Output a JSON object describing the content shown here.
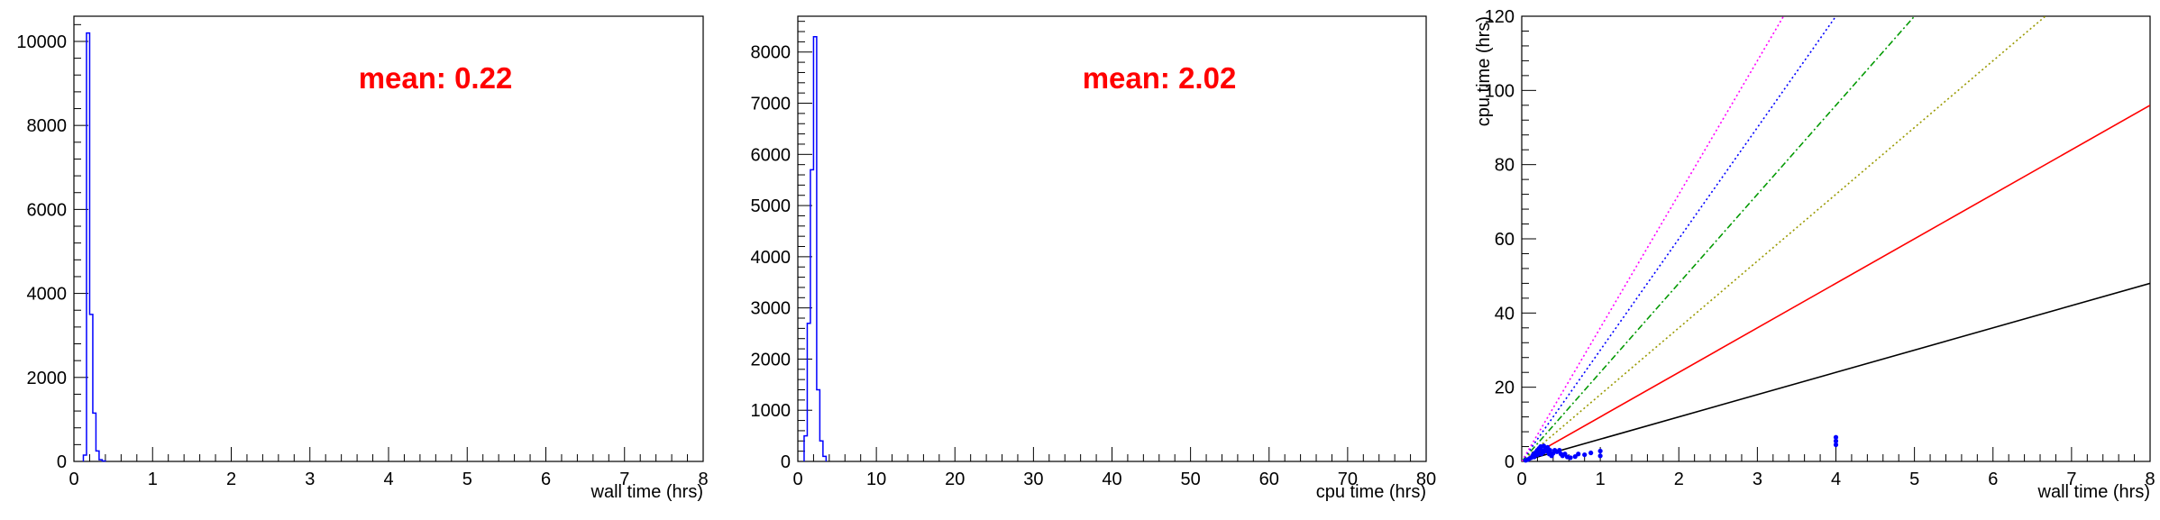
{
  "colors": {
    "hist": "#0000ff",
    "annotation": "#ff0000",
    "frame": "#000000"
  },
  "chart_data": [
    {
      "type": "histogram",
      "xlabel": "wall time (hrs)",
      "ylabel": "",
      "xlim": [
        0,
        8
      ],
      "ylim": [
        0,
        10600
      ],
      "x_ticks": [
        "0",
        "1",
        "2",
        "3",
        "4",
        "5",
        "6",
        "7",
        "8"
      ],
      "y_ticks": [
        "0",
        "2000",
        "4000",
        "6000",
        "8000",
        "10000"
      ],
      "bins": {
        "edges": [
          0.12,
          0.16,
          0.2,
          0.24,
          0.28,
          0.32,
          0.36,
          0.4
        ],
        "counts": [
          150,
          10200,
          3500,
          1150,
          250,
          40,
          10
        ]
      },
      "annotation": "mean: 0.22",
      "legend": "none"
    },
    {
      "type": "histogram",
      "xlabel": "cpu time (hrs)",
      "ylabel": "",
      "xlim": [
        0,
        80
      ],
      "ylim": [
        0,
        8700
      ],
      "x_ticks": [
        "0",
        "10",
        "20",
        "30",
        "40",
        "50",
        "60",
        "70",
        "80"
      ],
      "y_ticks": [
        "0",
        "1000",
        "2000",
        "3000",
        "4000",
        "5000",
        "6000",
        "7000",
        "8000"
      ],
      "bins": {
        "edges": [
          0.8,
          1.2,
          1.6,
          2.0,
          2.4,
          2.8,
          3.2,
          3.6
        ],
        "counts": [
          500,
          2700,
          5700,
          8300,
          1400,
          400,
          100
        ]
      },
      "annotation": "mean: 2.02",
      "legend": "none"
    },
    {
      "type": "scatter",
      "xlabel": "wall time (hrs)",
      "ylabel": "cpu time (hrs)",
      "xlim": [
        0,
        8
      ],
      "ylim": [
        0,
        120
      ],
      "x_ticks": [
        "0",
        "1",
        "2",
        "3",
        "4",
        "5",
        "6",
        "7",
        "8"
      ],
      "y_ticks": [
        "0",
        "20",
        "40",
        "60",
        "80",
        "100",
        "120"
      ],
      "reference_lines": [
        {
          "slope": 6,
          "color": "#000000",
          "style": "solid"
        },
        {
          "slope": 12,
          "color": "#ff0000",
          "style": "solid"
        },
        {
          "slope": 18,
          "color": "#999900",
          "style": "dotted"
        },
        {
          "slope": 24,
          "color": "#009900",
          "style": "dashdot"
        },
        {
          "slope": 30,
          "color": "#0000ff",
          "style": "dotted"
        },
        {
          "slope": 36,
          "color": "#ff00ff",
          "style": "dotted"
        }
      ],
      "points": {
        "x": [
          0.05,
          0.08,
          0.1,
          0.12,
          0.14,
          0.15,
          0.16,
          0.18,
          0.2,
          0.2,
          0.22,
          0.22,
          0.24,
          0.25,
          0.26,
          0.28,
          0.28,
          0.3,
          0.32,
          0.33,
          0.35,
          0.36,
          0.38,
          0.4,
          0.42,
          0.45,
          0.48,
          0.5,
          0.52,
          0.55,
          0.58,
          0.62,
          0.68,
          0.72,
          0.8,
          0.88,
          1.0,
          1.0,
          4.0,
          4.0,
          4.0
        ],
        "y": [
          0.3,
          0.5,
          0.8,
          1.0,
          1.5,
          2.0,
          1.2,
          2.5,
          3.0,
          1.8,
          2.2,
          3.5,
          4.0,
          2.0,
          3.0,
          2.5,
          4.2,
          3.2,
          2.8,
          3.8,
          2.0,
          3.0,
          1.5,
          2.2,
          3.0,
          2.6,
          3.0,
          2.0,
          1.5,
          2.0,
          1.2,
          1.0,
          1.3,
          2.0,
          1.8,
          2.3,
          1.5,
          2.8,
          4.5,
          5.5,
          6.5
        ]
      },
      "legend": "none"
    }
  ]
}
